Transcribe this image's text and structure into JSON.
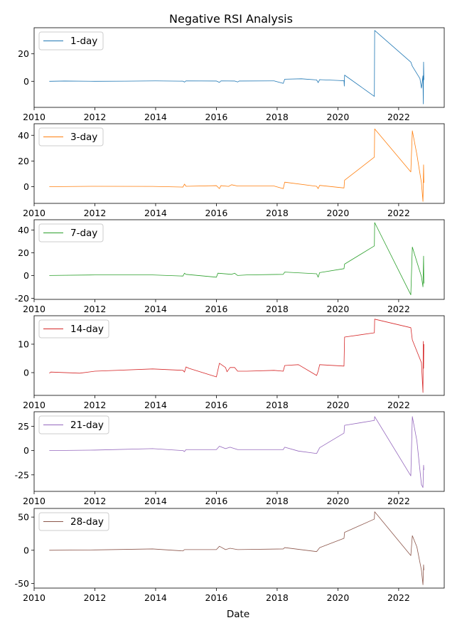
{
  "chart_data": {
    "type": "line",
    "title": "Negative RSI Analysis",
    "xlabel": "Date",
    "x_ticks": [
      "2010",
      "2012",
      "2014",
      "2016",
      "2018",
      "2020",
      "2022"
    ],
    "xlim": [
      2010.0,
      2023.5
    ],
    "legend_position": "top-left",
    "grid": false,
    "panels": [
      {
        "name": "1-day",
        "color": "#1f77b4",
        "ylim": [
          -19,
          39
        ],
        "y_ticks": [
          0,
          20
        ],
        "points": [
          [
            2010.5,
            0
          ],
          [
            2011.0,
            0.2
          ],
          [
            2012.0,
            0
          ],
          [
            2013.0,
            0.1
          ],
          [
            2014.0,
            0.3
          ],
          [
            2014.9,
            0.1
          ],
          [
            2014.95,
            -0.6
          ],
          [
            2015.0,
            0.3
          ],
          [
            2016.0,
            0.2
          ],
          [
            2016.1,
            -0.8
          ],
          [
            2016.15,
            0.3
          ],
          [
            2016.6,
            0.2
          ],
          [
            2016.7,
            -0.5
          ],
          [
            2016.75,
            0.2
          ],
          [
            2017.9,
            0.3
          ],
          [
            2018.2,
            -1.5
          ],
          [
            2018.25,
            1.5
          ],
          [
            2018.8,
            1.8
          ],
          [
            2019.3,
            1.0
          ],
          [
            2019.35,
            -1.0
          ],
          [
            2019.4,
            1.2
          ],
          [
            2020.0,
            0.6
          ],
          [
            2020.2,
            0.4
          ],
          [
            2020.21,
            -3.5
          ],
          [
            2020.22,
            4.5
          ],
          [
            2021.2,
            -11.0
          ],
          [
            2021.21,
            37.0
          ],
          [
            2022.4,
            14.0
          ],
          [
            2022.45,
            11.0
          ],
          [
            2022.7,
            2.0
          ],
          [
            2022.75,
            -5.0
          ],
          [
            2022.8,
            4.0
          ],
          [
            2022.81,
            -16.5
          ],
          [
            2022.82,
            14.0
          ],
          [
            2022.83,
            1.0
          ]
        ]
      },
      {
        "name": "3-day",
        "color": "#ff7f0e",
        "ylim": [
          -13,
          49
        ],
        "y_ticks": [
          0,
          20,
          40
        ],
        "points": [
          [
            2010.5,
            0
          ],
          [
            2012.0,
            0.3
          ],
          [
            2013.9,
            0.2
          ],
          [
            2014.9,
            -0.3
          ],
          [
            2014.95,
            2.0
          ],
          [
            2015.0,
            0.3
          ],
          [
            2016.0,
            0.8
          ],
          [
            2016.1,
            -1.5
          ],
          [
            2016.15,
            0.8
          ],
          [
            2016.4,
            0.2
          ],
          [
            2016.5,
            1.5
          ],
          [
            2016.7,
            0.5
          ],
          [
            2017.9,
            0.5
          ],
          [
            2018.2,
            -1.5
          ],
          [
            2018.25,
            3.5
          ],
          [
            2019.3,
            0.3
          ],
          [
            2019.35,
            -1.5
          ],
          [
            2019.4,
            1.0
          ],
          [
            2020.2,
            -1.0
          ],
          [
            2020.22,
            5.0
          ],
          [
            2021.2,
            23.0
          ],
          [
            2021.21,
            45.0
          ],
          [
            2022.4,
            11.5
          ],
          [
            2022.45,
            43.5
          ],
          [
            2022.6,
            25.0
          ],
          [
            2022.75,
            3.0
          ],
          [
            2022.8,
            -11.5
          ],
          [
            2022.82,
            17.0
          ],
          [
            2022.83,
            3.0
          ]
        ]
      },
      {
        "name": "7-day",
        "color": "#2ca02c",
        "ylim": [
          -21,
          49
        ],
        "y_ticks": [
          -20,
          0,
          20,
          40
        ],
        "points": [
          [
            2010.5,
            0
          ],
          [
            2012.0,
            0.5
          ],
          [
            2013.9,
            0.5
          ],
          [
            2014.9,
            -0.5
          ],
          [
            2014.95,
            2.0
          ],
          [
            2015.0,
            1.0
          ],
          [
            2016.0,
            -1.5
          ],
          [
            2016.05,
            2.0
          ],
          [
            2016.5,
            1.0
          ],
          [
            2016.6,
            2.0
          ],
          [
            2016.7,
            0.0
          ],
          [
            2017.0,
            0.5
          ],
          [
            2018.2,
            1.0
          ],
          [
            2018.25,
            3.0
          ],
          [
            2019.3,
            1.5
          ],
          [
            2019.35,
            -1.5
          ],
          [
            2019.4,
            2.5
          ],
          [
            2020.2,
            6.0
          ],
          [
            2020.22,
            10.0
          ],
          [
            2021.2,
            26.0
          ],
          [
            2021.21,
            46.5
          ],
          [
            2022.4,
            -17.0
          ],
          [
            2022.45,
            25.0
          ],
          [
            2022.6,
            12.0
          ],
          [
            2022.75,
            -1.0
          ],
          [
            2022.8,
            -10.0
          ],
          [
            2022.82,
            17.0
          ],
          [
            2022.83,
            -7.0
          ]
        ]
      },
      {
        "name": "14-day",
        "color": "#d62728",
        "ylim": [
          -8,
          20
        ],
        "y_ticks": [
          0,
          10
        ],
        "points": [
          [
            2010.5,
            -0.2
          ],
          [
            2010.55,
            0.2
          ],
          [
            2011.5,
            -0.2
          ],
          [
            2012.0,
            0.5
          ],
          [
            2013.9,
            1.3
          ],
          [
            2014.9,
            0.8
          ],
          [
            2014.95,
            0.2
          ],
          [
            2015.0,
            2.0
          ],
          [
            2015.1,
            1.5
          ],
          [
            2016.0,
            -1.5
          ],
          [
            2016.1,
            3.3
          ],
          [
            2016.3,
            1.8
          ],
          [
            2016.35,
            0.3
          ],
          [
            2016.45,
            1.8
          ],
          [
            2016.6,
            1.8
          ],
          [
            2016.7,
            0.5
          ],
          [
            2017.0,
            0.5
          ],
          [
            2017.9,
            0.8
          ],
          [
            2018.2,
            0.5
          ],
          [
            2018.25,
            2.5
          ],
          [
            2018.7,
            2.8
          ],
          [
            2019.3,
            -1.0
          ],
          [
            2019.35,
            0.5
          ],
          [
            2019.4,
            2.8
          ],
          [
            2020.2,
            2.3
          ],
          [
            2020.22,
            12.5
          ],
          [
            2021.2,
            14.0
          ],
          [
            2021.21,
            18.8
          ],
          [
            2022.4,
            15.8
          ],
          [
            2022.45,
            11.5
          ],
          [
            2022.75,
            3.5
          ],
          [
            2022.8,
            -7.0
          ],
          [
            2022.81,
            11.0
          ],
          [
            2022.82,
            1.5
          ],
          [
            2022.83,
            10.0
          ]
        ]
      },
      {
        "name": "21-day",
        "color": "#9467bd",
        "ylim": [
          -42,
          40
        ],
        "y_ticks": [
          -25,
          0,
          25
        ],
        "points": [
          [
            2010.5,
            0
          ],
          [
            2012.0,
            0.5
          ],
          [
            2013.9,
            2.0
          ],
          [
            2014.9,
            0.0
          ],
          [
            2014.95,
            -1.0
          ],
          [
            2015.0,
            1.0
          ],
          [
            2016.0,
            1.0
          ],
          [
            2016.1,
            4.5
          ],
          [
            2016.3,
            2.0
          ],
          [
            2016.45,
            3.5
          ],
          [
            2016.7,
            1.0
          ],
          [
            2018.2,
            1.0
          ],
          [
            2018.25,
            3.5
          ],
          [
            2018.7,
            -0.5
          ],
          [
            2019.3,
            -3.0
          ],
          [
            2019.4,
            3.0
          ],
          [
            2020.2,
            18.0
          ],
          [
            2020.22,
            26.0
          ],
          [
            2021.2,
            31.0
          ],
          [
            2021.21,
            35.0
          ],
          [
            2022.4,
            -26.0
          ],
          [
            2022.45,
            35.0
          ],
          [
            2022.6,
            10.0
          ],
          [
            2022.75,
            -35.0
          ],
          [
            2022.8,
            -38.0
          ],
          [
            2022.82,
            -15.0
          ],
          [
            2022.83,
            -20.0
          ]
        ]
      },
      {
        "name": "28-day",
        "color": "#8c564b",
        "ylim": [
          -57,
          63
        ],
        "y_ticks": [
          -50,
          0,
          50
        ],
        "points": [
          [
            2010.5,
            0
          ],
          [
            2012.0,
            0.5
          ],
          [
            2013.9,
            2.0
          ],
          [
            2014.9,
            -1.0
          ],
          [
            2014.95,
            1.0
          ],
          [
            2016.0,
            1.0
          ],
          [
            2016.1,
            6.0
          ],
          [
            2016.3,
            1.0
          ],
          [
            2016.45,
            3.0
          ],
          [
            2016.7,
            1.0
          ],
          [
            2018.2,
            2.0
          ],
          [
            2018.25,
            4.0
          ],
          [
            2019.3,
            -2.0
          ],
          [
            2019.4,
            4.0
          ],
          [
            2020.2,
            18.0
          ],
          [
            2020.22,
            27.0
          ],
          [
            2021.2,
            47.0
          ],
          [
            2021.21,
            58.0
          ],
          [
            2022.4,
            -8.0
          ],
          [
            2022.45,
            22.0
          ],
          [
            2022.6,
            5.0
          ],
          [
            2022.75,
            -30.0
          ],
          [
            2022.8,
            -52.0
          ],
          [
            2022.82,
            -22.0
          ],
          [
            2022.83,
            -30.0
          ]
        ]
      }
    ]
  }
}
